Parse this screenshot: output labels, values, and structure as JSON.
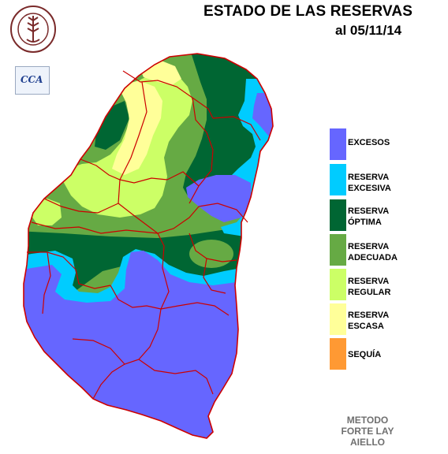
{
  "header": {
    "title": "ESTADO DE LAS RESERVAS",
    "date": "al 05/11/14"
  },
  "logos": {
    "seal_text": "BOLSA DE CEREALES DE ENTRE RIOS",
    "cca_text": "CCA"
  },
  "legend": [
    {
      "label": "EXCESOS",
      "color": "#6666ff"
    },
    {
      "label": "RESERVA\nEXCESIVA",
      "color": "#00ccff"
    },
    {
      "label": "RESERVA\nÓPTIMA",
      "color": "#006633"
    },
    {
      "label": "RESERVA\nADECUADA",
      "color": "#66aa44"
    },
    {
      "label": "RESERVA\nREGULAR",
      "color": "#ccff66"
    },
    {
      "label": "RESERVA\nESCASA",
      "color": "#ffff99"
    },
    {
      "label": "SEQUÍA",
      "color": "#ff9933"
    }
  ],
  "footer": {
    "method_1": "METODO",
    "method_2": "FORTE LAY",
    "method_3": "AIELLO"
  },
  "colors": {
    "border": "#cc0000",
    "background": "#ffffff"
  }
}
